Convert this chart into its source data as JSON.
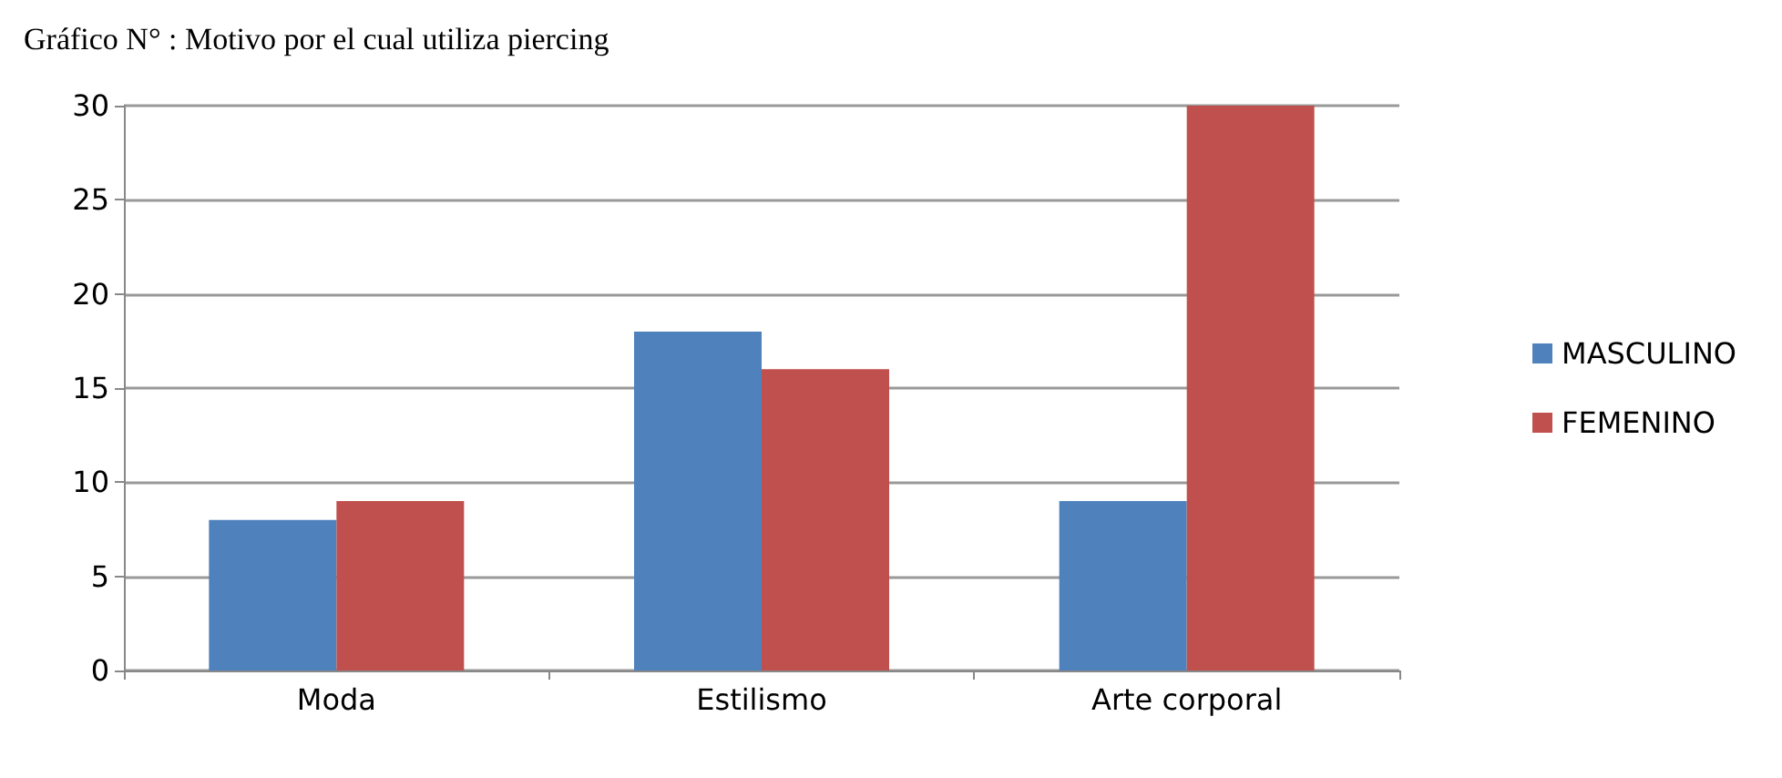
{
  "chart_data": {
    "type": "bar",
    "title": "Gráfico N° : Motivo por el cual utiliza piercing",
    "categories": [
      "Moda",
      "Estilismo",
      "Arte corporal"
    ],
    "series": [
      {
        "name": "MASCULINO",
        "color": "#4f81bd",
        "values": [
          8,
          18,
          9
        ]
      },
      {
        "name": "FEMENINO",
        "color": "#c0504d",
        "values": [
          9,
          16,
          30
        ]
      }
    ],
    "ylim": [
      0,
      30
    ],
    "yticks": [
      0,
      5,
      10,
      15,
      20,
      25,
      30
    ],
    "grid": "y",
    "legend": "right"
  }
}
